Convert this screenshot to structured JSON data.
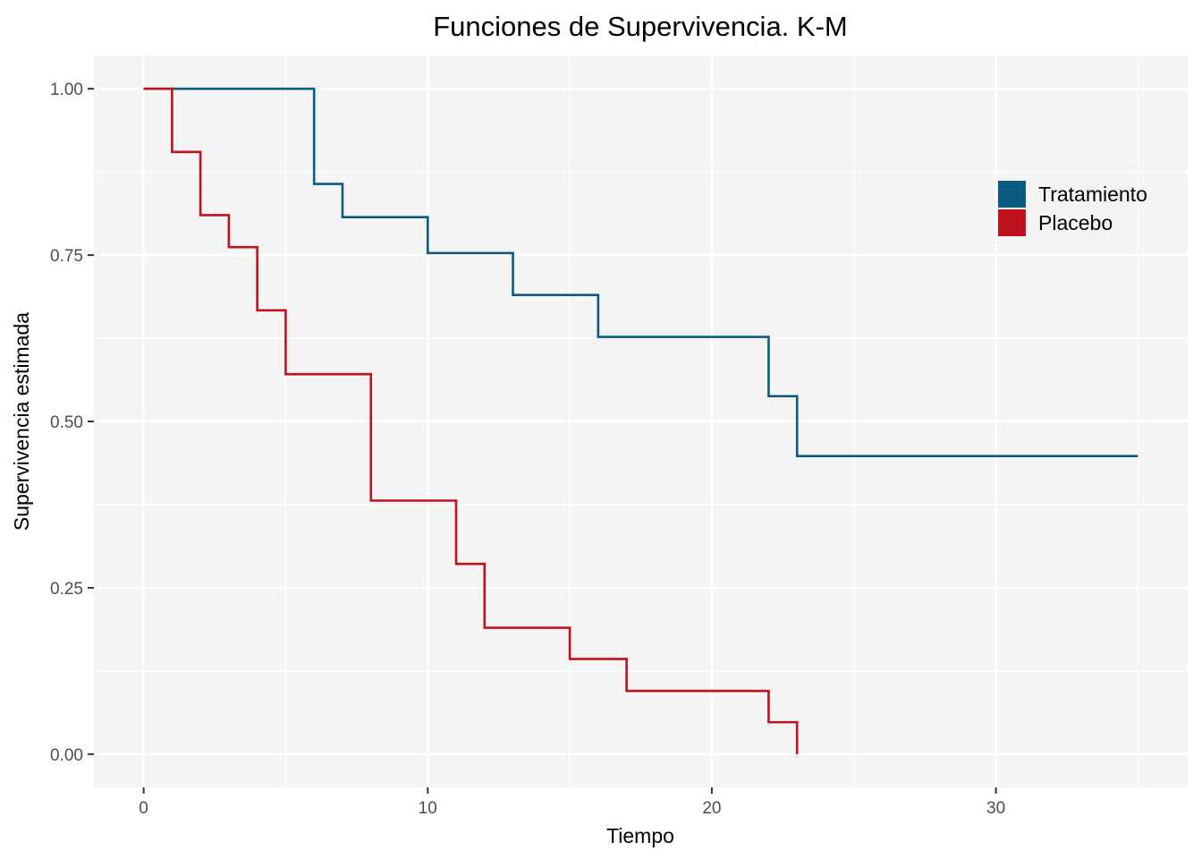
{
  "chart_data": {
    "type": "line",
    "step": true,
    "title": "Funciones de Supervivencia. K-M",
    "xlabel": "Tiempo",
    "ylabel": "Supervivencia estimada",
    "xlim": [
      -1.75,
      36.75
    ],
    "ylim": [
      -0.05,
      1.05
    ],
    "x_ticks": [
      0,
      10,
      20,
      30
    ],
    "x_tick_labels": [
      "0",
      "10",
      "20",
      "30"
    ],
    "y_ticks": [
      0,
      0.25,
      0.5,
      0.75,
      1
    ],
    "y_tick_labels": [
      "0.00",
      "0.25",
      "0.50",
      "0.75",
      "1.00"
    ],
    "grid": true,
    "legend_position": "top-right",
    "series": [
      {
        "name": "Tratamiento",
        "color": "#0b5a80",
        "x": [
          0,
          6,
          7,
          10,
          13,
          16,
          22,
          23,
          35
        ],
        "y": [
          1.0,
          0.857,
          0.807,
          0.753,
          0.69,
          0.627,
          0.538,
          0.448,
          0.448
        ]
      },
      {
        "name": "Placebo",
        "color": "#c0111f",
        "x": [
          0,
          1,
          2,
          3,
          4,
          5,
          8,
          11,
          12,
          15,
          17,
          22,
          23
        ],
        "y": [
          1.0,
          0.905,
          0.81,
          0.762,
          0.667,
          0.571,
          0.381,
          0.286,
          0.19,
          0.143,
          0.095,
          0.048,
          0.0
        ]
      }
    ]
  }
}
